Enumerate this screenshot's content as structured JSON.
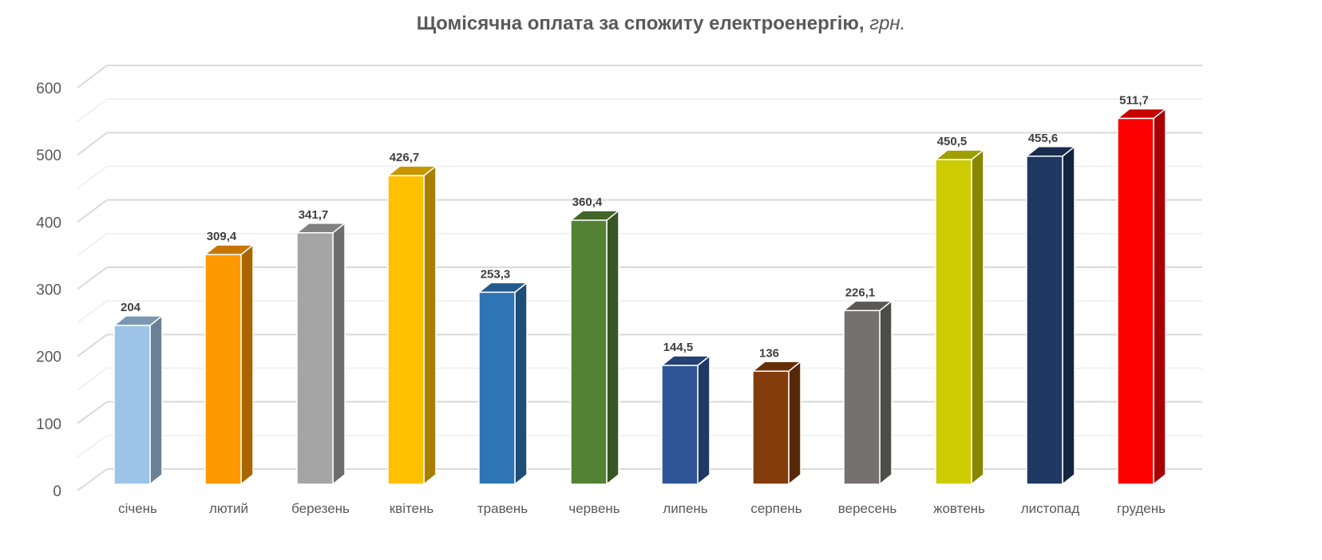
{
  "chart_data": {
    "type": "bar",
    "title": "Щомісячна оплата за спожиту електроенергію,",
    "title_unit": "грн.",
    "categories": [
      "січень",
      "лютий",
      "березень",
      "квітень",
      "травень",
      "червень",
      "липень",
      "серпень",
      "вересень",
      "жовтень",
      "листопад",
      "грудень"
    ],
    "values": [
      204,
      309.4,
      341.7,
      426.7,
      253.3,
      360.4,
      144.5,
      136,
      226.1,
      450.5,
      455.6,
      511.7
    ],
    "data_labels": [
      "204",
      "309,4",
      "341,7",
      "426,7",
      "253,3",
      "360,4",
      "144,5",
      "136",
      "226,1",
      "450,5",
      "455,6",
      "511,7"
    ],
    "bar_colors": [
      "#9DC3E6",
      "#FF9900",
      "#A5A5A5",
      "#FFC000",
      "#2E75B6",
      "#548235",
      "#2F5597",
      "#843C0C",
      "#767171",
      "#CCCC00",
      "#1F3864",
      "#FF0000"
    ],
    "ylim": [
      0,
      600
    ],
    "yticks": [
      0,
      100,
      200,
      300,
      400,
      500,
      600
    ],
    "grid": true,
    "style": "3d-column"
  }
}
